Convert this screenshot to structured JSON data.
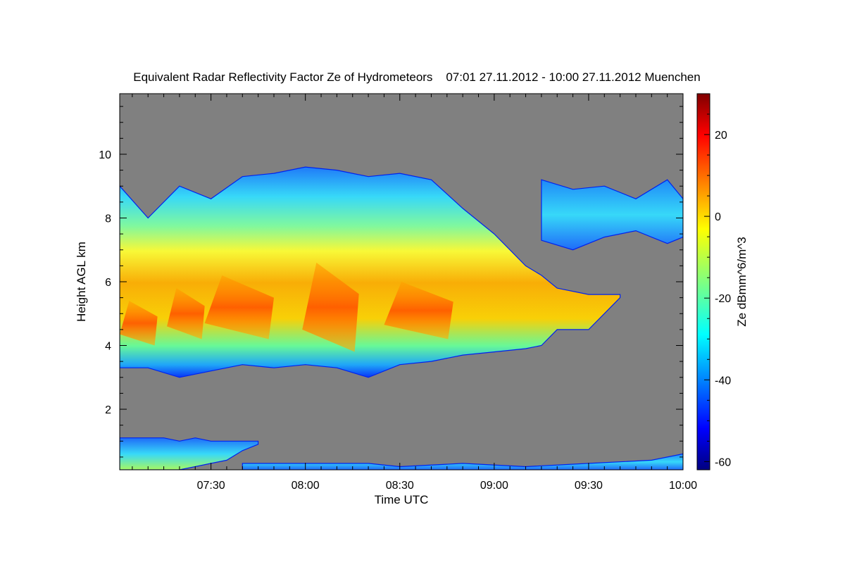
{
  "chart_data": {
    "type": "heatmap",
    "title": "Equivalent Radar Reflectivity Factor Ze of Hydrometeors    07:01 27.11.2012 - 10:00 27.11.2012 Muenchen",
    "xlabel": "Time UTC",
    "ylabel": "Height AGL km",
    "colorbar_label": "Ze dBmm^6/m^3",
    "xlim_min": [
      421,
      600
    ],
    "ylim_km": [
      0.1,
      11.9
    ],
    "x_ticks": [
      "07:30",
      "08:00",
      "08:30",
      "09:00",
      "09:30",
      "10:00"
    ],
    "x_tick_minutes": [
      450,
      480,
      510,
      540,
      570,
      600
    ],
    "y_ticks": [
      "2",
      "4",
      "6",
      "8",
      "10"
    ],
    "y_tick_values": [
      2,
      4,
      6,
      8,
      10
    ],
    "colorbar_ticks": [
      "20",
      "0",
      "-20",
      "-40",
      "-60"
    ],
    "colorbar_values": [
      20,
      0,
      -20,
      -40,
      -60
    ],
    "colorbar_range": [
      -62,
      30
    ],
    "no_data_color": "#808080",
    "cloud_layers": [
      {
        "t": [
          421,
          430,
          440,
          450,
          460,
          470,
          480,
          490,
          500,
          510,
          520,
          530,
          540,
          550,
          555,
          560,
          570,
          580
        ],
        "base_km": [
          3.3,
          3.3,
          3.0,
          3.2,
          3.4,
          3.3,
          3.4,
          3.3,
          3.0,
          3.4,
          3.5,
          3.7,
          3.8,
          3.9,
          4.0,
          4.5,
          4.5,
          5.5
        ],
        "top_km": [
          9.0,
          8.0,
          9.0,
          8.6,
          9.3,
          9.4,
          9.6,
          9.5,
          9.3,
          9.4,
          9.2,
          8.3,
          7.5,
          6.5,
          6.2,
          5.8,
          5.6,
          5.6
        ]
      },
      {
        "t": [
          555,
          565,
          575,
          585,
          595,
          600
        ],
        "base_km": [
          7.3,
          7.0,
          7.4,
          7.6,
          7.2,
          7.4
        ],
        "top_km": [
          9.2,
          8.9,
          9.0,
          8.6,
          9.2,
          8.6
        ]
      },
      {
        "t": [
          421,
          435,
          440,
          445,
          450,
          455,
          460,
          465
        ],
        "base_km": [
          0.1,
          0.1,
          0.1,
          0.2,
          0.3,
          0.4,
          0.7,
          0.9
        ],
        "top_km": [
          1.1,
          1.1,
          1.0,
          1.1,
          1.0,
          1.0,
          1.0,
          1.0
        ]
      },
      {
        "t": [
          460,
          480,
          500,
          510,
          530,
          550,
          570,
          590,
          600
        ],
        "base_km": [
          0.1,
          0.1,
          0.1,
          0.1,
          0.1,
          0.1,
          0.1,
          0.1,
          0.1
        ],
        "top_km": [
          0.3,
          0.3,
          0.3,
          0.2,
          0.3,
          0.2,
          0.3,
          0.4,
          0.6
        ]
      }
    ],
    "high_reflectivity_cores": [
      {
        "t": [
          421,
          433
        ],
        "height_km": [
          4.0,
          5.4
        ],
        "ze_max": 12
      },
      {
        "t": [
          436,
          448
        ],
        "height_km": [
          4.2,
          5.8
        ],
        "ze_max": 10
      },
      {
        "t": [
          448,
          470
        ],
        "height_km": [
          4.2,
          6.2
        ],
        "ze_max": 5
      },
      {
        "t": [
          479,
          497
        ],
        "height_km": [
          3.8,
          6.6
        ],
        "ze_max": 15
      },
      {
        "t": [
          505,
          527
        ],
        "height_km": [
          4.2,
          6.0
        ],
        "ze_max": 5
      }
    ]
  }
}
